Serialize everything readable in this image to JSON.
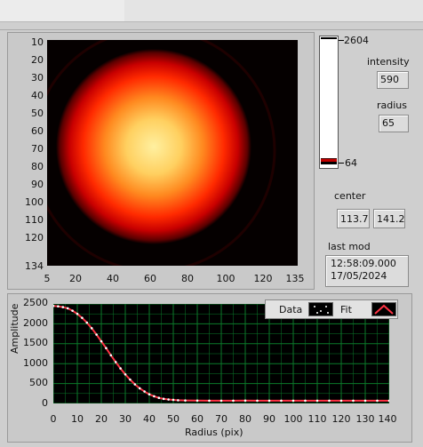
{
  "image_panel": {
    "y_ticks": [
      "10",
      "20",
      "30",
      "40",
      "50",
      "60",
      "70",
      "80",
      "90",
      "100",
      "110",
      "120",
      "134"
    ],
    "x_ticks": [
      "5",
      "20",
      "40",
      "60",
      "80",
      "100",
      "120",
      "135"
    ]
  },
  "colorbar": {
    "max_label": "2604",
    "min_label": "64"
  },
  "indicators": {
    "intensity": {
      "label": "intensity",
      "value": "590"
    },
    "radius": {
      "label": "radius",
      "value": "65"
    },
    "center": {
      "label": "center",
      "x": "113.7",
      "y": "141.2"
    },
    "last_mod": {
      "label": "last mod",
      "time": "12:58:09.000",
      "date": "17/05/2024"
    }
  },
  "legend": {
    "data_label": "Data",
    "fit_label": "Fit"
  },
  "colors": {
    "fit_line": "#ff3344",
    "grid": "#0b7a2a",
    "data_points": "#ffffff"
  },
  "chart_data": {
    "type": "scatter",
    "xlabel": "Radius (pix)",
    "ylabel": "Amplitude",
    "xlim": [
      0,
      140
    ],
    "ylim": [
      0,
      2500
    ],
    "x_ticks": [
      "0",
      "10",
      "20",
      "30",
      "40",
      "50",
      "60",
      "70",
      "80",
      "90",
      "100",
      "110",
      "120",
      "130",
      "140"
    ],
    "y_ticks": [
      "0",
      "500",
      "1000",
      "1500",
      "2000",
      "2500"
    ],
    "grid": true,
    "legend_position": "top-right",
    "series": [
      {
        "name": "Data",
        "x": [
          0,
          2,
          4,
          6,
          8,
          10,
          12,
          14,
          16,
          18,
          20,
          22,
          24,
          26,
          28,
          30,
          32,
          34,
          36,
          38,
          40,
          42,
          44,
          46,
          48,
          50,
          52,
          55,
          60,
          65,
          70,
          75,
          80,
          85,
          90,
          95,
          100,
          105,
          110,
          115,
          120,
          125,
          130,
          135,
          140
        ],
        "y": [
          2450,
          2440,
          2420,
          2390,
          2330,
          2250,
          2150,
          2030,
          1890,
          1730,
          1560,
          1390,
          1210,
          1040,
          880,
          730,
          600,
          480,
          380,
          300,
          230,
          180,
          140,
          115,
          100,
          90,
          80,
          75,
          72,
          70,
          70,
          70,
          72,
          70,
          70,
          70,
          70,
          70,
          70,
          70,
          70,
          70,
          70,
          70,
          70
        ]
      },
      {
        "name": "Fit",
        "x": [
          0,
          2,
          4,
          6,
          8,
          10,
          12,
          14,
          16,
          18,
          20,
          22,
          24,
          26,
          28,
          30,
          32,
          34,
          36,
          38,
          40,
          42,
          44,
          46,
          48,
          50,
          52,
          55,
          60,
          65,
          70,
          75,
          80,
          85,
          90,
          95,
          100,
          105,
          110,
          115,
          120,
          125,
          130,
          135,
          140
        ],
        "y": [
          2450,
          2440,
          2420,
          2390,
          2330,
          2250,
          2150,
          2030,
          1890,
          1730,
          1560,
          1390,
          1210,
          1040,
          880,
          730,
          600,
          480,
          380,
          300,
          230,
          180,
          140,
          115,
          100,
          90,
          80,
          75,
          72,
          70,
          70,
          70,
          72,
          70,
          70,
          70,
          70,
          70,
          70,
          70,
          70,
          70,
          70,
          70,
          70
        ]
      }
    ]
  }
}
